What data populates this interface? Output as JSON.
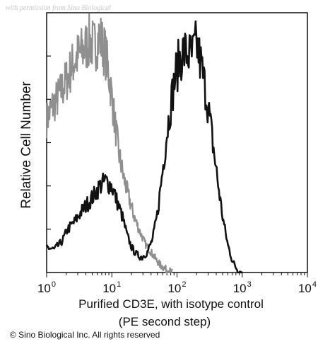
{
  "watermark": "with permission from Sino Biological",
  "copyright": "© Sino Biological Inc. All rights reserved",
  "chart_data": {
    "type": "line",
    "xlabel_line1": "Purified CD3E, with isotype control",
    "xlabel_line2": "(PE second step)",
    "ylabel": "Relative Cell Number",
    "xscale": "log",
    "xlim": [
      1,
      10000
    ],
    "ylim": [
      0,
      100
    ],
    "xticks": [
      {
        "base": "10",
        "exp": "0",
        "value": 1
      },
      {
        "base": "10",
        "exp": "1",
        "value": 10
      },
      {
        "base": "10",
        "exp": "2",
        "value": 100
      },
      {
        "base": "10",
        "exp": "3",
        "value": 1000
      },
      {
        "base": "10",
        "exp": "4",
        "value": 10000
      }
    ],
    "ytick_count": 5,
    "grid": false,
    "series": [
      {
        "role": "isotype control",
        "color": "#8f8f8f",
        "x": [
          1,
          1.2,
          1.5,
          1.8,
          2.2,
          2.6,
          3.2,
          3.8,
          4.5,
          5.5,
          6.5,
          8,
          9.5,
          11,
          13,
          15,
          18,
          22,
          27,
          33,
          40,
          48,
          55,
          62,
          70,
          78,
          85
        ],
        "y": [
          60,
          65,
          69,
          73,
          78,
          83,
          86,
          88,
          91,
          89,
          93,
          86,
          74,
          60,
          46,
          38,
          30,
          22,
          16,
          11,
          8,
          5,
          3,
          2,
          1,
          0.5,
          0
        ]
      },
      {
        "role": "CD3E",
        "color": "#111111",
        "x": [
          1,
          1.3,
          1.7,
          2.1,
          2.7,
          3.4,
          4.2,
          5.2,
          6.5,
          8,
          10,
          12,
          14.5,
          17,
          20,
          24,
          29,
          35,
          42,
          50,
          60,
          70,
          80,
          95,
          110,
          125,
          145,
          170,
          200,
          240,
          290,
          350,
          420,
          500,
          600,
          720,
          850,
          1000
        ],
        "y": [
          10,
          9,
          12,
          17,
          20,
          24,
          27,
          30,
          34,
          36,
          34,
          28,
          22,
          15,
          10,
          7,
          6,
          8,
          13,
          23,
          40,
          55,
          66,
          78,
          84,
          87,
          86,
          85,
          90,
          80,
          68,
          52,
          36,
          22,
          11,
          4,
          1,
          0
        ]
      }
    ]
  }
}
